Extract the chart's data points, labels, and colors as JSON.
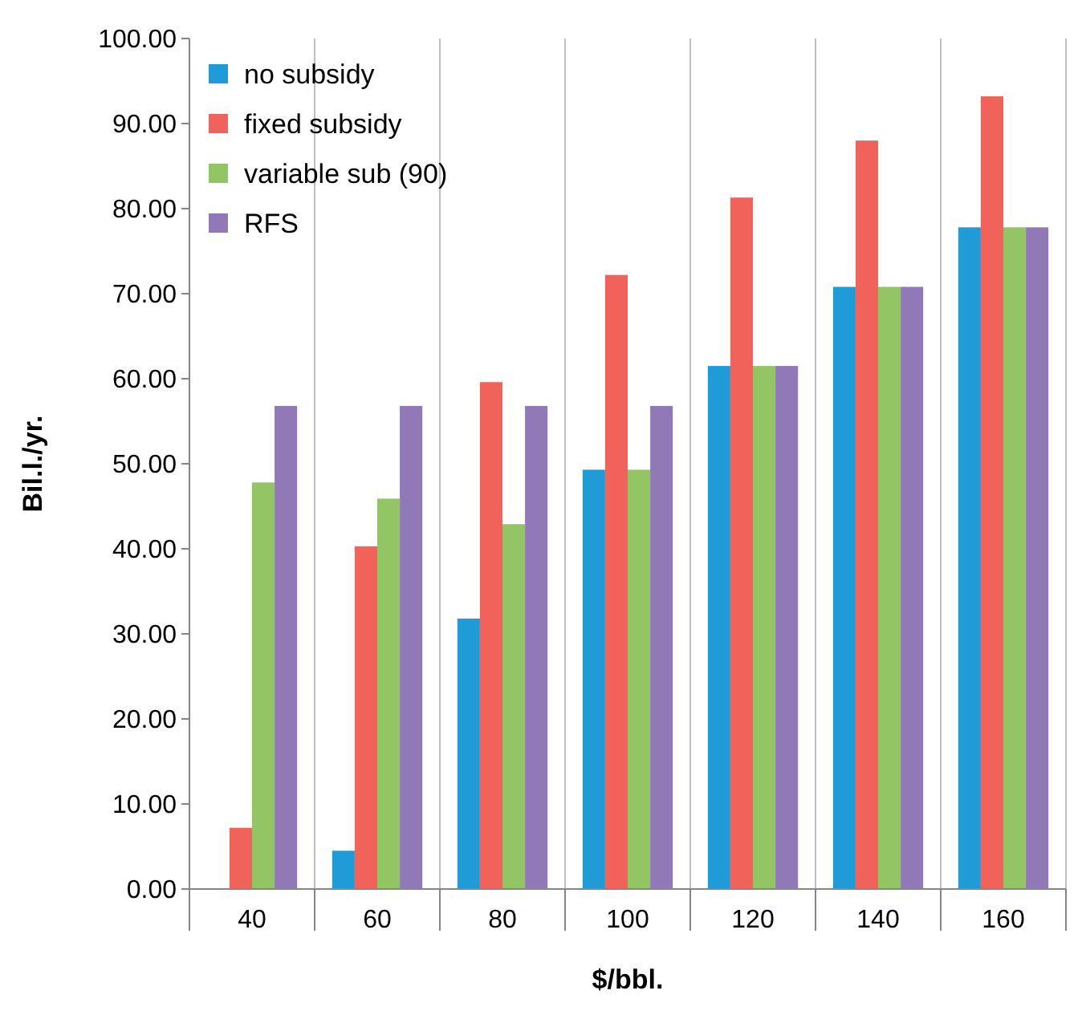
{
  "chart_data": {
    "type": "bar",
    "xlabel": "$/bbl.",
    "ylabel": "Bil.l./yr.",
    "categories": [
      "40",
      "60",
      "80",
      "100",
      "120",
      "140",
      "160"
    ],
    "series": [
      {
        "name": "no subsidy",
        "color": "#1f9bd7",
        "values": [
          0,
          4.5,
          31.8,
          49.3,
          61.5,
          70.8,
          77.8
        ]
      },
      {
        "name": "fixed subsidy",
        "color": "#f0625a",
        "values": [
          7.2,
          40.3,
          59.6,
          72.2,
          81.3,
          88.0,
          93.2
        ]
      },
      {
        "name": "variable sub (90)",
        "color": "#93c564",
        "values": [
          47.8,
          45.9,
          42.9,
          49.3,
          61.5,
          70.8,
          77.8
        ]
      },
      {
        "name": "RFS",
        "color": "#9179b8",
        "values": [
          56.8,
          56.8,
          56.8,
          56.8,
          61.5,
          70.8,
          77.8
        ]
      }
    ],
    "ylim": [
      0,
      100
    ],
    "yticks": [
      {
        "value": 0,
        "label": "0.00"
      },
      {
        "value": 10,
        "label": "10.00"
      },
      {
        "value": 20,
        "label": "20.00"
      },
      {
        "value": 30,
        "label": "30.00"
      },
      {
        "value": 40,
        "label": "40.00"
      },
      {
        "value": 50,
        "label": "50.00"
      },
      {
        "value": 60,
        "label": "60.00"
      },
      {
        "value": 70,
        "label": "70.00"
      },
      {
        "value": 80,
        "label": "80.00"
      },
      {
        "value": 90,
        "label": "90.00"
      },
      {
        "value": 100,
        "label": "100.00"
      }
    ],
    "grid": "x",
    "legend": "top left"
  }
}
